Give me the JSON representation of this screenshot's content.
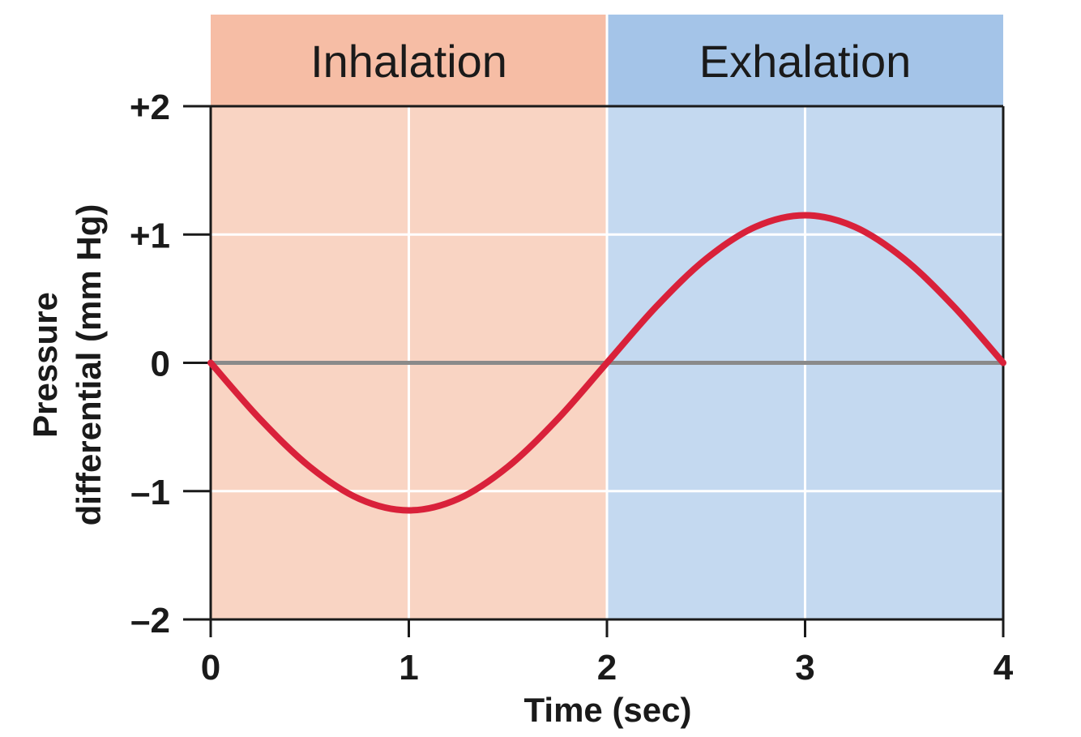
{
  "chart_data": {
    "type": "line",
    "title": "",
    "xlabel": "Time (sec)",
    "ylabel_lines": [
      "Pressure",
      "differential (mm Hg)"
    ],
    "xlim": [
      0,
      4
    ],
    "ylim": [
      -2,
      2
    ],
    "x_ticks": [
      0,
      1,
      2,
      3,
      4
    ],
    "x_tick_labels": [
      "0",
      "1",
      "2",
      "3",
      "4"
    ],
    "y_ticks": [
      2,
      1,
      0,
      -1,
      -2
    ],
    "y_tick_labels": [
      "+2",
      "+1",
      "0",
      "–1",
      "–2"
    ],
    "grid": true,
    "zero_line": true,
    "phases": [
      {
        "label": "Inhalation",
        "x_start": 0,
        "x_end": 2,
        "color_header": "#f6bda5",
        "color_body": "#f9d4c3"
      },
      {
        "label": "Exhalation",
        "x_start": 2,
        "x_end": 4,
        "color_header": "#a4c4e8",
        "color_body": "#c4d9f0"
      }
    ],
    "series": [
      {
        "name": "Pressure differential",
        "color": "#d9213a",
        "x": [
          0,
          0.25,
          0.5,
          0.75,
          1,
          1.25,
          1.5,
          1.75,
          2,
          2.25,
          2.5,
          2.75,
          3,
          3.25,
          3.5,
          3.75,
          4
        ],
        "values": [
          0,
          -0.44,
          -0.81,
          -1.06,
          -1.15,
          -1.06,
          -0.81,
          -0.44,
          0,
          0.44,
          0.81,
          1.06,
          1.15,
          1.06,
          0.81,
          0.44,
          0
        ]
      }
    ]
  }
}
